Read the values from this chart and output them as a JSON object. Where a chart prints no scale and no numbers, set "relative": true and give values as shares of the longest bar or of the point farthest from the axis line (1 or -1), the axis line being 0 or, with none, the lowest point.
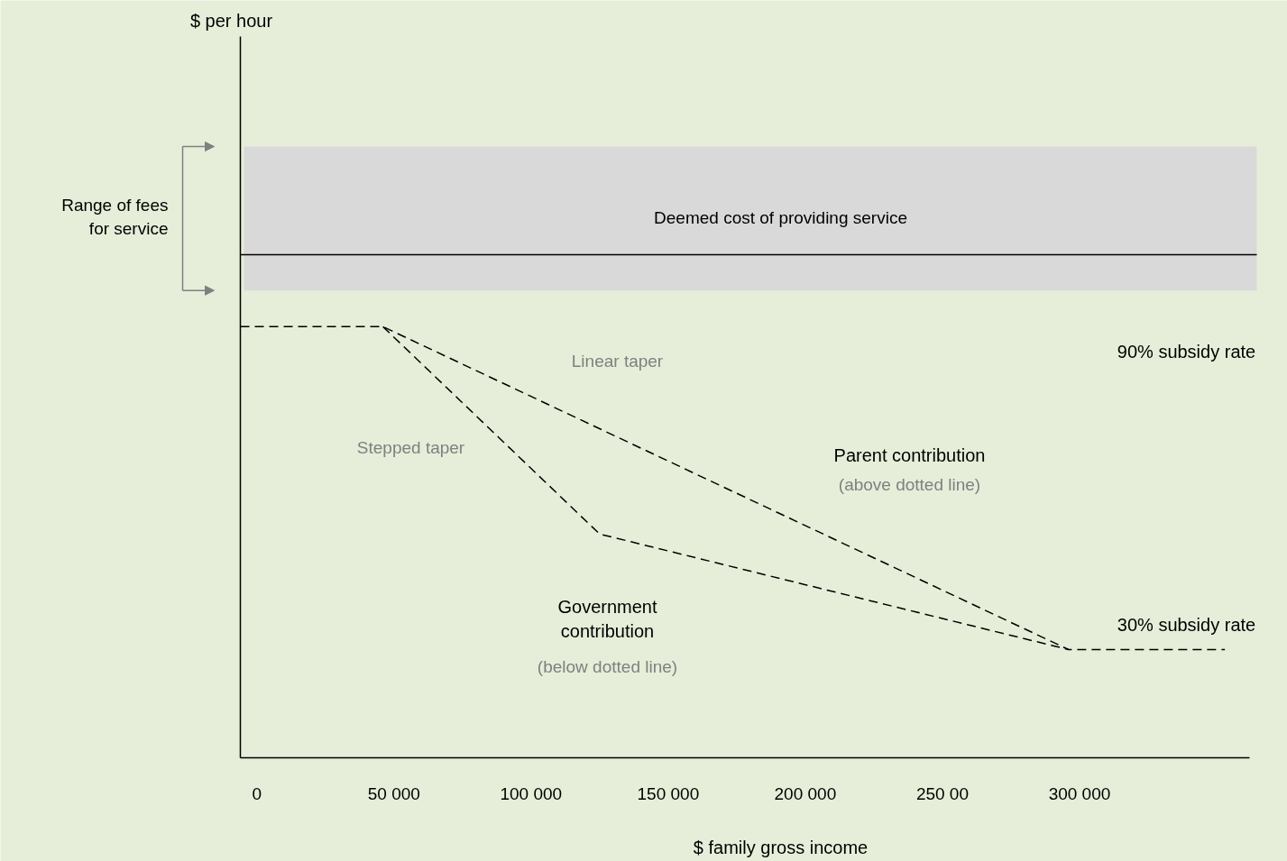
{
  "chart_data": {
    "type": "line",
    "relative": true,
    "xlabel": "$ family gross income",
    "xlim": [
      -6000,
      362000
    ],
    "xticks": [
      0,
      {
        "value": 50000,
        "label": "50 000"
      },
      {
        "value": 100000,
        "label": "100 000"
      },
      {
        "value": 150000,
        "label": "150 000"
      },
      {
        "value": 200000,
        "label": "200 000"
      },
      {
        "value": 250000,
        "label": "250 00"
      },
      {
        "value": 300000,
        "label": "300 000"
      }
    ],
    "line_style": "dashed",
    "marker": "none",
    "grid": false,
    "series": [
      {
        "name": "Linear taper",
        "color": "#000000",
        "x": [
          -6000,
          46000,
          296000,
          353000
        ],
        "values": [
          1,
          1,
          0.251,
          0.251
        ]
      },
      {
        "name": "Stepped taper",
        "color": "#000000",
        "x": [
          46000,
          125000,
          296000
        ],
        "values": [
          1,
          0.519,
          0.251
        ]
      }
    ],
    "ref_lines": [
      {
        "axis": "y",
        "value": 1.167,
        "label": "Deemed cost of providing service",
        "color": "#000000"
      }
    ],
    "bands": [
      {
        "axis": "y",
        "from": 1.084,
        "to": 1.418,
        "color": "#d9d9d9"
      }
    ],
    "annotations": [
      "90% subsidy rate",
      "30% subsidy rate",
      "Parent contribution",
      "(above dotted line)",
      "Government\ncontribution",
      "(below dotted line)",
      "$ per hour",
      "Range of fees\nfor service"
    ]
  }
}
